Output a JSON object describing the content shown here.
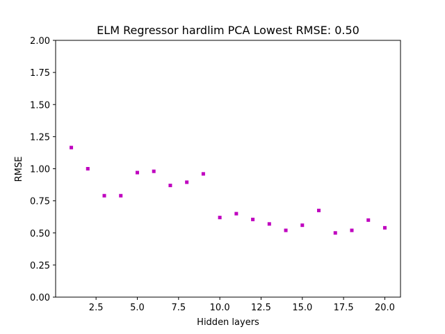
{
  "chart_data": {
    "type": "scatter",
    "title": "ELM Regressor hardlim PCA Lowest RMSE: 0.50",
    "xlabel": "Hidden layers",
    "ylabel": "RMSE",
    "xlim": [
      0.05,
      20.95
    ],
    "ylim": [
      0,
      2
    ],
    "xticks": [
      2.5,
      5.0,
      7.5,
      10.0,
      12.5,
      15.0,
      17.5,
      20.0
    ],
    "xtick_labels": [
      "2.5",
      "5.0",
      "7.5",
      "10.0",
      "12.5",
      "15.0",
      "17.5",
      "20.0"
    ],
    "yticks": [
      0,
      0.25,
      0.5,
      0.75,
      1.0,
      1.25,
      1.5,
      1.75,
      2.0
    ],
    "ytick_labels": [
      "0.00",
      "0.25",
      "0.50",
      "0.75",
      "1.00",
      "1.25",
      "1.50",
      "1.75",
      "2.00"
    ],
    "grid": false,
    "marker_color": "#bf00bf",
    "series": [
      {
        "x": [
          1,
          2,
          3,
          4,
          5,
          6,
          7,
          8,
          9,
          10,
          11,
          12,
          13,
          14,
          15,
          16,
          17,
          18,
          19,
          20
        ],
        "y": [
          1.165,
          1.0,
          0.79,
          0.79,
          0.97,
          0.98,
          0.87,
          0.895,
          0.96,
          0.62,
          0.65,
          0.605,
          0.57,
          0.52,
          0.56,
          0.675,
          0.5,
          0.52,
          0.6,
          0.54
        ]
      }
    ]
  }
}
